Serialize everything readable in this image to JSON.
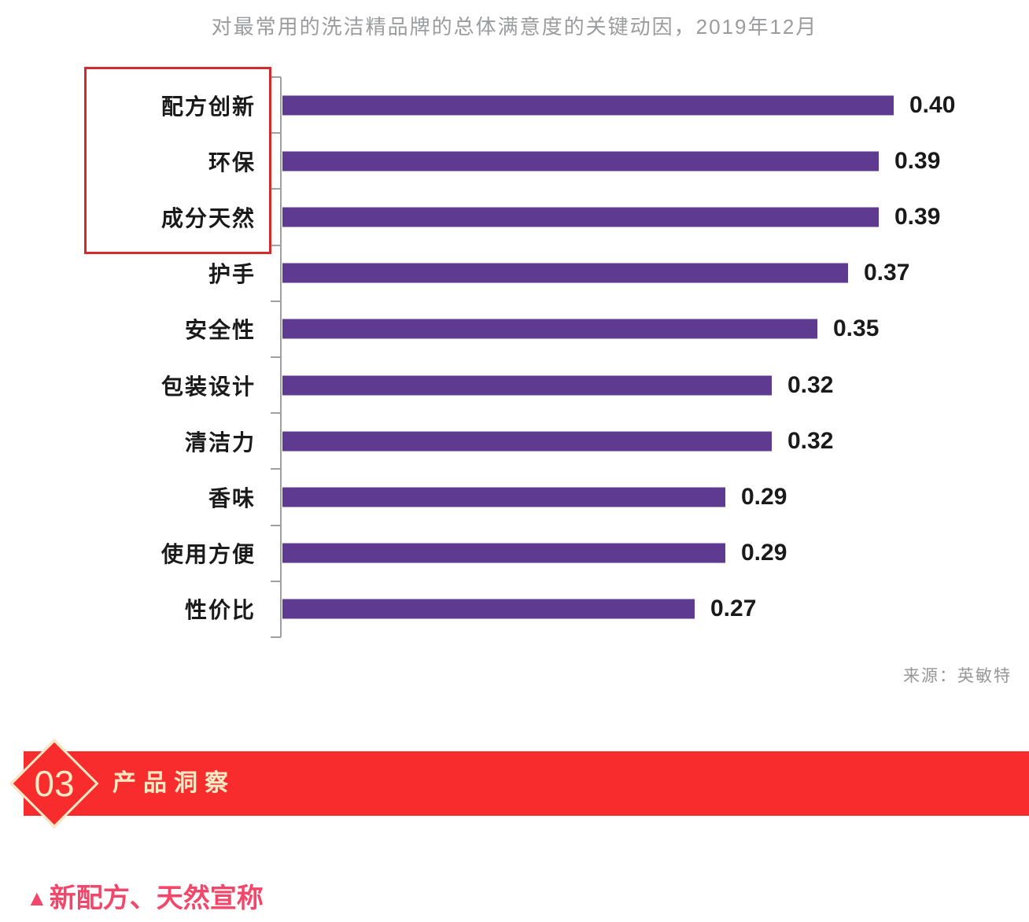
{
  "title": "对最常用的洗洁精品牌的总体满意度的关键动因，2019年12月",
  "source": "来源：英敏特",
  "chart_data": {
    "type": "bar",
    "orientation": "horizontal",
    "title": "对最常用的洗洁精品牌的总体满意度的关键动因，2019年12月",
    "categories": [
      "配方创新",
      "环保",
      "成分天然",
      "护手",
      "安全性",
      "包装设计",
      "清洁力",
      "香味",
      "使用方便",
      "性价比"
    ],
    "values": [
      0.4,
      0.39,
      0.39,
      0.37,
      0.35,
      0.32,
      0.32,
      0.29,
      0.29,
      0.27
    ],
    "value_labels": [
      "0.40",
      "0.39",
      "0.39",
      "0.37",
      "0.35",
      "0.32",
      "0.32",
      "0.29",
      "0.29",
      "0.27"
    ],
    "highlighted_categories": [
      "配方创新",
      "环保",
      "成分天然"
    ],
    "xlim": [
      0,
      0.45
    ],
    "grid": false,
    "legend": "none",
    "bar_color": "#5e3b90",
    "axis_color": "#a0a0a0",
    "highlight_border_color": "#d22b2b",
    "source": "来源：英敏特"
  },
  "section_banner": {
    "number": "03",
    "label": "产品洞察",
    "background_color": "#f82c2c",
    "text_color": "#f8e9c5"
  },
  "annotation": {
    "marker": "▲",
    "text": "新配方、天然宣称",
    "color": "#f2476a"
  }
}
